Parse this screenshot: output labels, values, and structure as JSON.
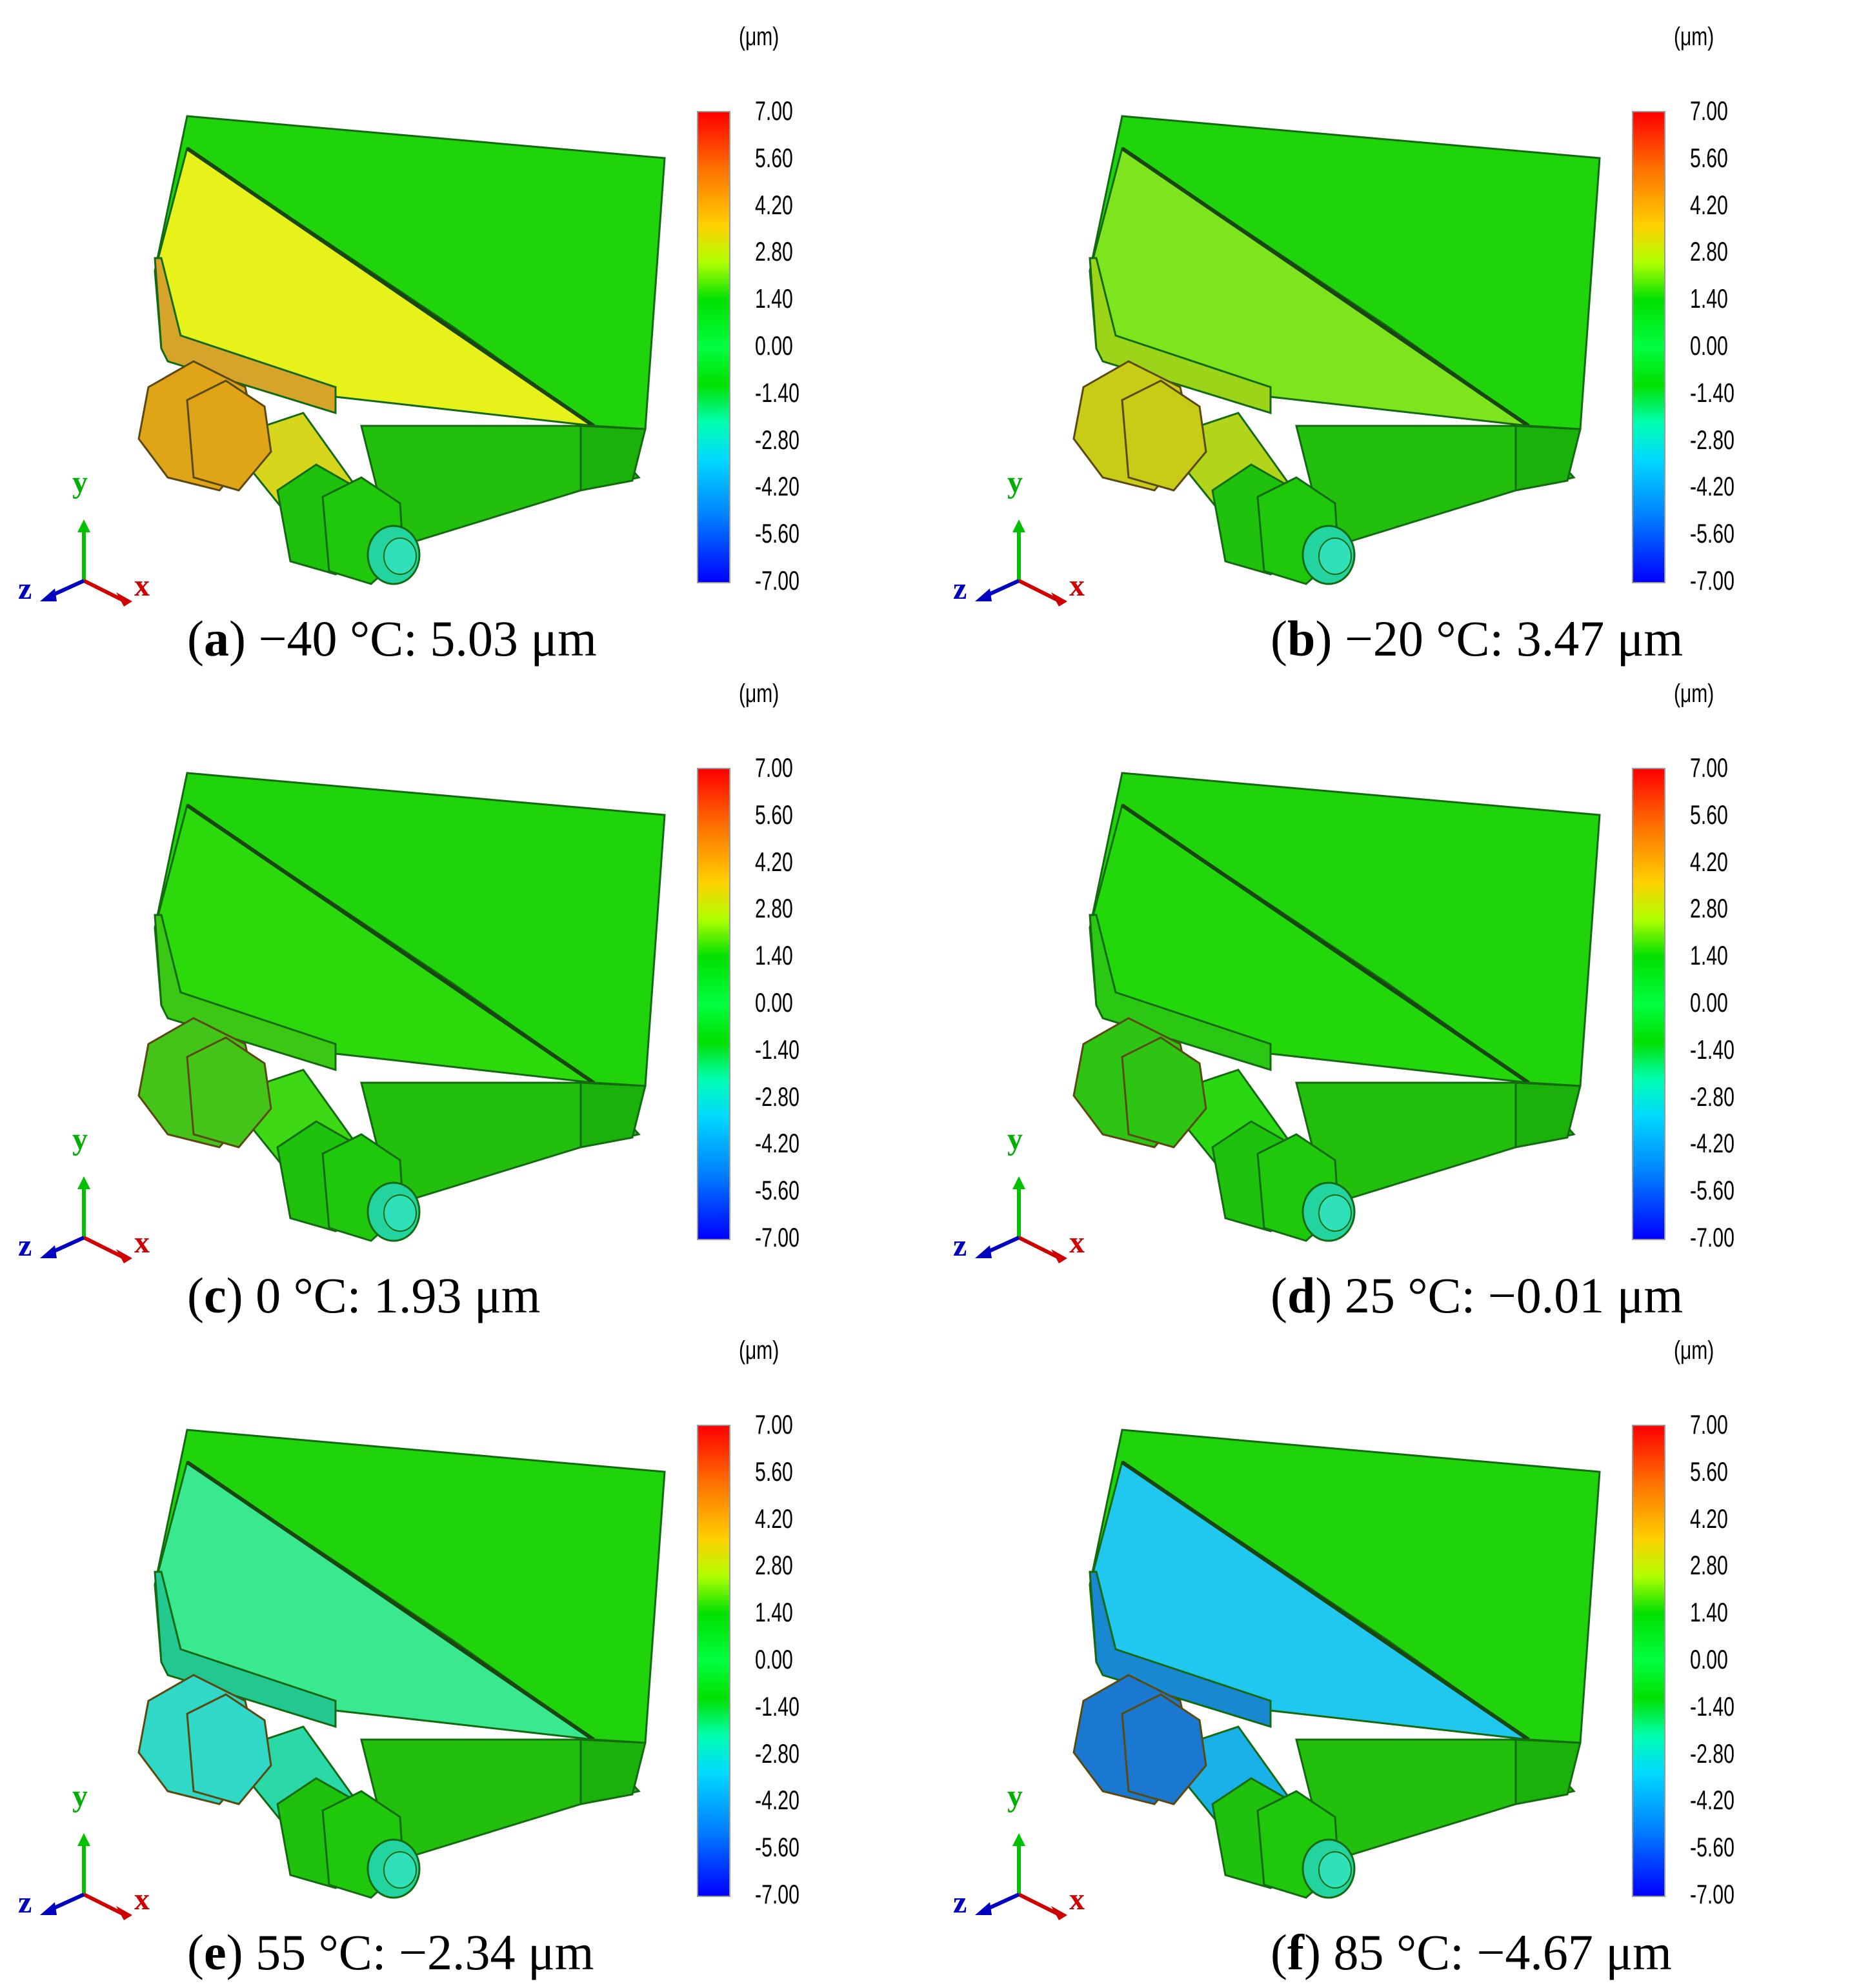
{
  "legend": {
    "unit": "(μm)",
    "ticks": [
      "7.00",
      "5.60",
      "4.20",
      "2.80",
      "1.40",
      "0.00",
      "-1.40",
      "-2.80",
      "-4.20",
      "-5.60",
      "-7.00"
    ]
  },
  "axes": {
    "x": "x",
    "y": "y",
    "z": "z"
  },
  "panels": [
    {
      "letter": "a",
      "rest": ") −40 °C: 5.03 μm",
      "open": "(",
      "colors": {
        "face": "#e6f21a",
        "left": "#d6a42a",
        "nut": "#e0a418",
        "rod": "#d8d61c"
      }
    },
    {
      "letter": "b",
      "rest": ") −20 °C: 3.47 μm",
      "open": "(",
      "colors": {
        "face": "#7ee41e",
        "left": "#9cd41a",
        "nut": "#c8cc16",
        "rod": "#b2d41a"
      }
    },
    {
      "letter": "c",
      "rest": ") 0 °C: 1.93 μm",
      "open": "(",
      "colors": {
        "face": "#2cd90a",
        "left": "#3ac814",
        "nut": "#44c418",
        "rod": "#3ed814"
      }
    },
    {
      "letter": "d",
      "rest": ") 25 °C: −0.01 μm",
      "open": "(",
      "colors": {
        "face": "#22d80a",
        "left": "#2ac812",
        "nut": "#2ec414",
        "rod": "#2ad812"
      }
    },
    {
      "letter": "e",
      "rest": ") 55 °C: −2.34 μm",
      "open": "(",
      "colors": {
        "face": "#3ae890",
        "left": "#22c890",
        "nut": "#30d8c8",
        "rod": "#2ad8a8"
      }
    },
    {
      "letter": "f",
      "rest": ") 85 °C: −4.67 μm",
      "open": "(",
      "colors": {
        "face": "#20c8f0",
        "left": "#1888d0",
        "nut": "#1a78d0",
        "rod": "#1ab0e8"
      }
    }
  ]
}
